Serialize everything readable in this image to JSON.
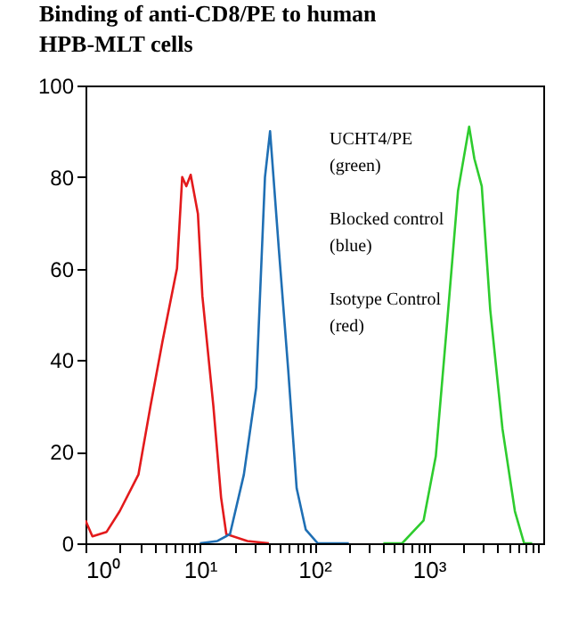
{
  "chart_data": {
    "type": "line",
    "title": "Binding of anti-CD8/PE to human HPB-MLT cells",
    "log": "x",
    "xlim": [
      1,
      10000
    ],
    "ylim": [
      0,
      100
    ],
    "xticks": [
      {
        "value": 1,
        "label": "10⁰"
      },
      {
        "value": 2,
        "label": null
      },
      {
        "value": 3,
        "label": null
      },
      {
        "value": 4,
        "label": null
      },
      {
        "value": 5,
        "label": null
      },
      {
        "value": 6,
        "label": null
      },
      {
        "value": 7,
        "label": null
      },
      {
        "value": 8,
        "label": null
      },
      {
        "value": 9,
        "label": null
      },
      {
        "value": 10,
        "label": "10¹"
      },
      {
        "value": 20,
        "label": null
      },
      {
        "value": 30,
        "label": null
      },
      {
        "value": 40,
        "label": null
      },
      {
        "value": 50,
        "label": null
      },
      {
        "value": 60,
        "label": null
      },
      {
        "value": 70,
        "label": null
      },
      {
        "value": 80,
        "label": null
      },
      {
        "value": 90,
        "label": null
      },
      {
        "value": 100,
        "label": "10²"
      },
      {
        "value": 200,
        "label": null
      },
      {
        "value": 300,
        "label": null
      },
      {
        "value": 400,
        "label": null
      },
      {
        "value": 500,
        "label": null
      },
      {
        "value": 600,
        "label": null
      },
      {
        "value": 700,
        "label": null
      },
      {
        "value": 800,
        "label": null
      },
      {
        "value": 900,
        "label": null
      },
      {
        "value": 1000,
        "label": "10³"
      },
      {
        "value": 2000,
        "label": null
      },
      {
        "value": 3000,
        "label": null
      },
      {
        "value": 4000,
        "label": null
      },
      {
        "value": 5000,
        "label": null
      },
      {
        "value": 6000,
        "label": null
      },
      {
        "value": 7000,
        "label": null
      },
      {
        "value": 8000,
        "label": null
      },
      {
        "value": 9000,
        "label": null
      }
    ],
    "yticks": [
      0,
      20,
      40,
      60,
      80,
      100
    ],
    "series": [
      {
        "color": "#e31a1c",
        "x": [
          1,
          1.04,
          1.15,
          1.53,
          1.99,
          2.9,
          3.7,
          4.7,
          6.3,
          7.0,
          7.6,
          8.3,
          9.6,
          10.5,
          13.1,
          15.3,
          17.0,
          26,
          40
        ],
        "values": [
          5,
          4,
          1.5,
          2.5,
          7,
          15,
          30,
          44,
          60,
          80,
          78,
          80.5,
          72,
          54,
          30,
          10,
          2,
          0.5,
          0
        ]
      },
      {
        "color": "#1f6fb4",
        "x": [
          10,
          14.2,
          18.3,
          24.2,
          31,
          37,
          41,
          49,
          59,
          70,
          84,
          107,
          200
        ],
        "values": [
          0,
          0.5,
          2,
          15,
          34,
          80,
          90,
          64,
          38,
          12,
          3,
          0,
          0
        ]
      },
      {
        "color": "#2ecc2e",
        "x": [
          400,
          585,
          900,
          1150,
          1410,
          1800,
          2250,
          2500,
          2900,
          3440,
          4400,
          5650,
          6800,
          8000
        ],
        "values": [
          0,
          0,
          5,
          19,
          45,
          77,
          91,
          84,
          78,
          51,
          25,
          7,
          0,
          0
        ]
      }
    ],
    "annotations": [
      "UCHT4/PE (green)",
      "Blocked control (blue)",
      "Isotype Control (red)"
    ]
  }
}
